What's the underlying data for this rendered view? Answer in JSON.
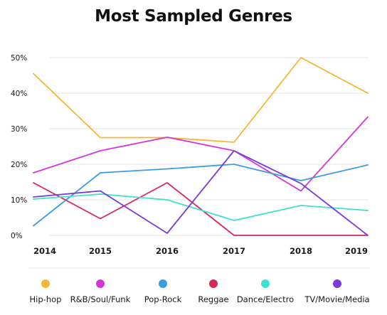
{
  "chart_data": {
    "type": "line",
    "title": "Most Sampled Genres",
    "xlabel": "",
    "ylabel": "",
    "x": [
      "2014",
      "2015",
      "2016",
      "2017",
      "2018",
      "2019"
    ],
    "ylim": [
      0,
      50
    ],
    "yticks": [
      0,
      10,
      20,
      30,
      40,
      50
    ],
    "ytick_labels": [
      "0%",
      "10%",
      "20%",
      "30%",
      "40%",
      "50%"
    ],
    "grid": "horizontal",
    "legend_position": "bottom",
    "series": [
      {
        "name": "Hip-hop",
        "color": "#f5b731",
        "values": [
          45.5,
          27.5,
          27.5,
          26.2,
          50.0,
          40.0
        ]
      },
      {
        "name": "R&B/Soul/Funk",
        "color": "#d535d8",
        "values": [
          17.6,
          23.8,
          27.6,
          23.8,
          12.5,
          33.3
        ]
      },
      {
        "name": "Pop-Rock",
        "color": "#3a9de2",
        "values": [
          2.7,
          17.6,
          18.7,
          20.0,
          15.4,
          19.8
        ]
      },
      {
        "name": "Reggae",
        "color": "#d62a5a",
        "values": [
          14.8,
          4.7,
          14.8,
          0.0,
          0.0,
          0.0
        ]
      },
      {
        "name": "Dance/Electro",
        "color": "#40e0cf",
        "values": [
          10.2,
          11.6,
          10.0,
          4.2,
          8.4,
          7.0
        ]
      },
      {
        "name": "TV/Movie/Media",
        "color": "#7a3ad8",
        "values": [
          10.8,
          12.5,
          0.6,
          23.8,
          14.6,
          0.0
        ]
      }
    ]
  }
}
